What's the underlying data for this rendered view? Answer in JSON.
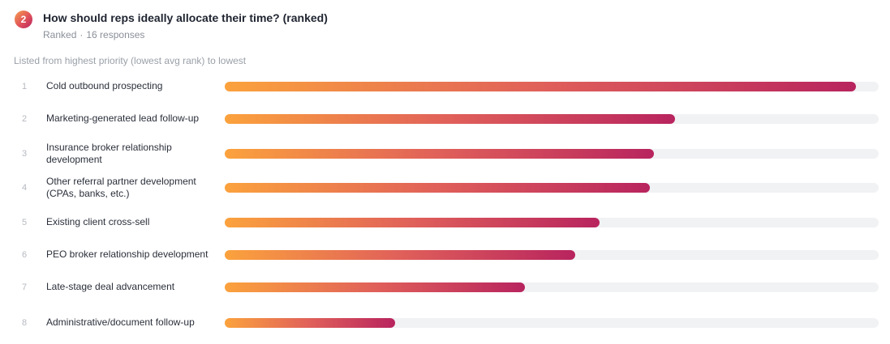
{
  "question": {
    "number": "2",
    "title": "How should reps ideally allocate their time? (ranked)",
    "type": "Ranked",
    "responses": "16 responses"
  },
  "note": "Listed from highest priority (lowest avg rank) to lowest",
  "colors": {
    "bar_start": "#fba23d",
    "bar_mid": "#e0605a",
    "bar_end": "#b8245e",
    "track": "#f1f2f4"
  },
  "chart_data": {
    "type": "bar",
    "orientation": "horizontal",
    "items": [
      {
        "rank": "1",
        "label": "Cold outbound prospecting",
        "value": 96.5
      },
      {
        "rank": "2",
        "label": "Marketing-generated lead follow-up",
        "value": 68.8
      },
      {
        "rank": "3",
        "label": "Insurance broker relationship development",
        "value": 65.6
      },
      {
        "rank": "4",
        "label": "Other referral partner development (CPAs, banks, etc.)",
        "value": 65.0
      },
      {
        "rank": "5",
        "label": "Existing client cross-sell",
        "value": 57.3
      },
      {
        "rank": "6",
        "label": "PEO broker relationship development",
        "value": 53.6
      },
      {
        "rank": "7",
        "label": "Late-stage deal advancement",
        "value": 45.9
      },
      {
        "rank": "8",
        "label": "Administrative/document follow-up",
        "value": 26.0
      }
    ],
    "xlim": [
      0,
      100
    ]
  }
}
